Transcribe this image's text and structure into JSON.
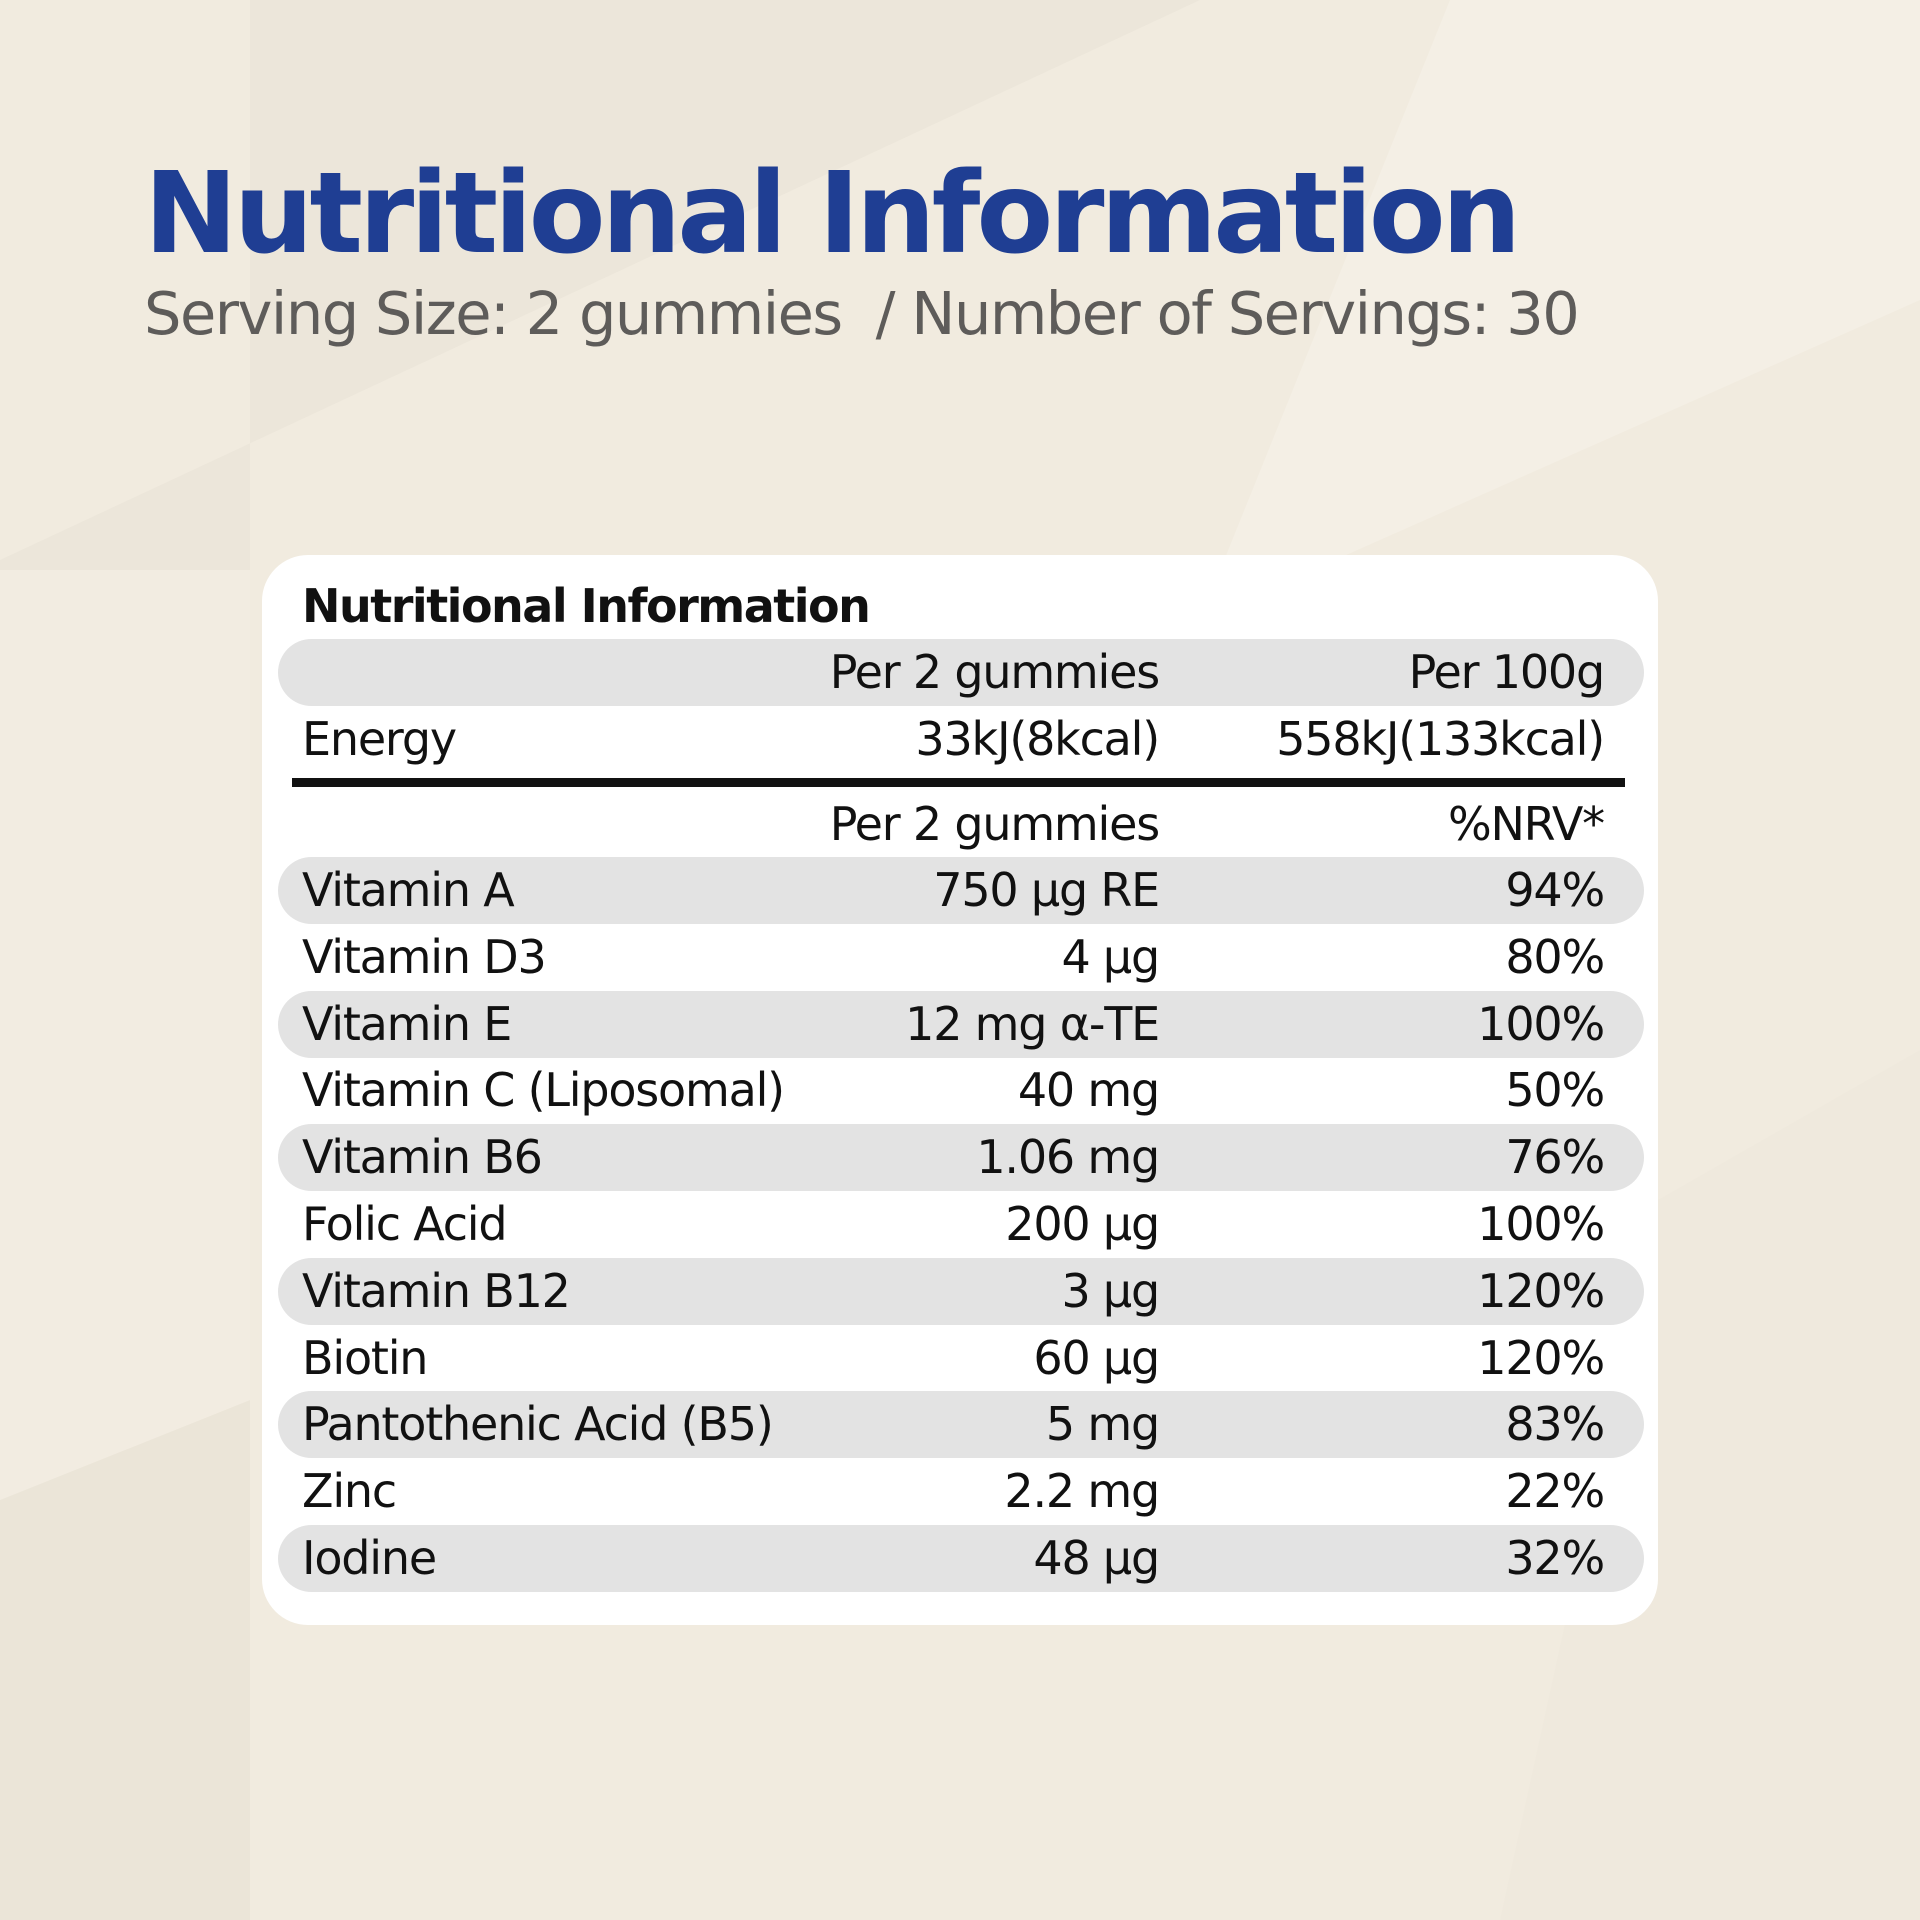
{
  "colors": {
    "background": "#f1ebdf",
    "heading": "#1f3e93",
    "subheading": "#5e5c5a",
    "card": "#ffffff",
    "row_shade": "#e3e3e3",
    "text": "#111111"
  },
  "header": {
    "title": "Nutritional Information",
    "serving_size": "Serving Size: 2 gummies",
    "servings_count": "/ Number of Servings: 30"
  },
  "table": {
    "title": "Nutritional Information",
    "energy_header": {
      "col1": "Per 2 gummies",
      "col2": "Per 100g"
    },
    "energy": {
      "name": "Energy",
      "per_serving": "33kJ(8kcal)",
      "per_100g": "558kJ(133kcal)"
    },
    "nutrient_header": {
      "col1": "Per 2 gummies",
      "col2": "%NRV*"
    },
    "nutrients": [
      {
        "name": "Vitamin A",
        "amount": "750 µg RE",
        "nrv": "94%"
      },
      {
        "name": "Vitamin D3",
        "amount": "4 µg",
        "nrv": "80%"
      },
      {
        "name": "Vitamin E",
        "amount": "12 mg α-TE",
        "nrv": "100%"
      },
      {
        "name": "Vitamin C (Liposomal)",
        "amount": "40 mg",
        "nrv": "50%"
      },
      {
        "name": "Vitamin B6",
        "amount": "1.06 mg",
        "nrv": "76%"
      },
      {
        "name": "Folic Acid",
        "amount": "200 µg",
        "nrv": "100%"
      },
      {
        "name": "Vitamin B12",
        "amount": "3 µg",
        "nrv": "120%"
      },
      {
        "name": "Biotin",
        "amount": "60 µg",
        "nrv": "120%"
      },
      {
        "name": "Pantothenic Acid (B5)",
        "amount": "5 mg",
        "nrv": "83%"
      },
      {
        "name": "Zinc",
        "amount": "2.2 mg",
        "nrv": "22%"
      },
      {
        "name": "Iodine",
        "amount": "48 µg",
        "nrv": "32%"
      }
    ]
  }
}
